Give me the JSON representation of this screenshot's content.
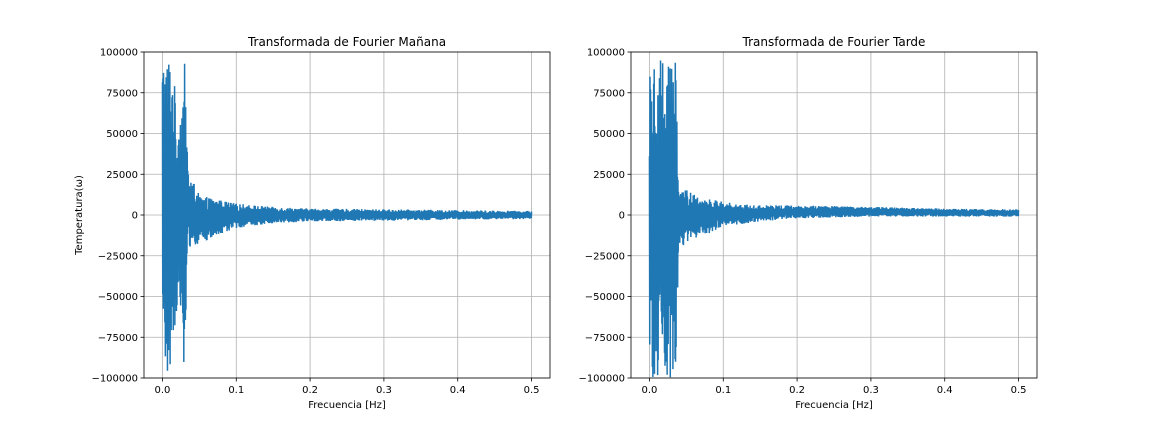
{
  "chart_data": [
    {
      "type": "line",
      "title": "Transformada de Fourier Mañana",
      "xlabel": "Frecuencia [Hz]",
      "ylabel": "Temperatura(ω)",
      "xlim": [
        -0.025,
        0.525
      ],
      "ylim": [
        -100000,
        100000
      ],
      "xticks": [
        0.0,
        0.1,
        0.2,
        0.3,
        0.4,
        0.5
      ],
      "xtick_labels": [
        "0.0",
        "0.1",
        "0.2",
        "0.3",
        "0.4",
        "0.5"
      ],
      "yticks": [
        -100000,
        -75000,
        -50000,
        -25000,
        0,
        25000,
        50000,
        75000,
        100000
      ],
      "ytick_labels": [
        "−100000",
        "−75000",
        "−50000",
        "−25000",
        "0",
        "25000",
        "50000",
        "75000",
        "100000"
      ],
      "grid": true,
      "color": "#1f77b4",
      "envelope": [
        {
          "x": 0.0,
          "low": -100000,
          "high": 100000
        },
        {
          "x": 0.01,
          "low": -100000,
          "high": 100000
        },
        {
          "x": 0.015,
          "low": -75000,
          "high": 90000
        },
        {
          "x": 0.02,
          "low": -55000,
          "high": 55000
        },
        {
          "x": 0.025,
          "low": -60000,
          "high": 70000
        },
        {
          "x": 0.03,
          "low": -100000,
          "high": 93000
        },
        {
          "x": 0.035,
          "low": -20000,
          "high": 28000
        },
        {
          "x": 0.05,
          "low": -18000,
          "high": 12000
        },
        {
          "x": 0.07,
          "low": -14000,
          "high": 10000
        },
        {
          "x": 0.1,
          "low": -8000,
          "high": 7000
        },
        {
          "x": 0.15,
          "low": -5000,
          "high": 5000
        },
        {
          "x": 0.2,
          "low": -4000,
          "high": 4000
        },
        {
          "x": 0.3,
          "low": -3500,
          "high": 3500
        },
        {
          "x": 0.4,
          "low": -3000,
          "high": 3000
        },
        {
          "x": 0.5,
          "low": -2500,
          "high": 2500
        }
      ]
    },
    {
      "type": "line",
      "title": "Transformada de Fourier Tarde",
      "xlabel": "Frecuencia [Hz]",
      "ylabel": "",
      "xlim": [
        -0.025,
        0.525
      ],
      "ylim": [
        -100000,
        100000
      ],
      "xticks": [
        0.0,
        0.1,
        0.2,
        0.3,
        0.4,
        0.5
      ],
      "xtick_labels": [
        "0.0",
        "0.1",
        "0.2",
        "0.3",
        "0.4",
        "0.5"
      ],
      "yticks": [
        -100000,
        -75000,
        -50000,
        -25000,
        0,
        25000,
        50000,
        75000,
        100000
      ],
      "ytick_labels": [
        "−100000",
        "−75000",
        "−50000",
        "−25000",
        "0",
        "25000",
        "50000",
        "75000",
        "100000"
      ],
      "grid": true,
      "color": "#1f77b4",
      "envelope": [
        {
          "x": 0.0,
          "low": -100000,
          "high": 100000
        },
        {
          "x": 0.035,
          "low": -100000,
          "high": 100000
        },
        {
          "x": 0.04,
          "low": -20000,
          "high": 18000
        },
        {
          "x": 0.06,
          "low": -15000,
          "high": 13000
        },
        {
          "x": 0.08,
          "low": -12000,
          "high": 10000
        },
        {
          "x": 0.1,
          "low": -7000,
          "high": 8000
        },
        {
          "x": 0.15,
          "low": -4000,
          "high": 6000
        },
        {
          "x": 0.2,
          "low": -2000,
          "high": 6000
        },
        {
          "x": 0.3,
          "low": -1000,
          "high": 5000
        },
        {
          "x": 0.4,
          "low": -1000,
          "high": 4000
        },
        {
          "x": 0.5,
          "low": -1000,
          "high": 3500
        }
      ]
    }
  ]
}
